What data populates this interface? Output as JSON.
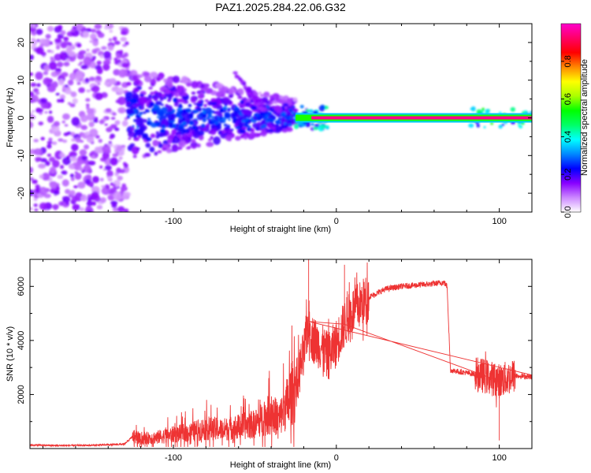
{
  "chart_data": [
    {
      "type": "heatmap",
      "title": "PAZ1.2025.284.22.06.G32",
      "xlabel": "Height of straight line (km)",
      "ylabel": "Frequency (Hz)",
      "xlim": [
        -188,
        120
      ],
      "ylim": [
        -25,
        25
      ],
      "xticks": [
        -100,
        0,
        100
      ],
      "yticks": [
        -20,
        -10,
        0,
        10,
        20
      ],
      "colorbar": {
        "label": "Normalized spectral amplitude",
        "range": [
          0,
          1
        ],
        "ticks": [
          0.0,
          0.2,
          0.4,
          0.6,
          0.8
        ],
        "colors": [
          "#ffffff",
          "#cc88ff",
          "#8800ff",
          "#0000ff",
          "#0088ff",
          "#00ffff",
          "#00ff66",
          "#00ff00",
          "#aaff00",
          "#ffff00",
          "#ff8800",
          "#ff0000",
          "#ff0066",
          "#ff00cc"
        ]
      },
      "regions": [
        {
          "x_range": [
            -188,
            -128
          ],
          "freq_range": [
            -25,
            25
          ],
          "amplitude": 0.05,
          "description": "sparse scatter"
        },
        {
          "x_range": [
            -128,
            -25
          ],
          "freq_range": [
            -10,
            12
          ],
          "amplitude": 0.15
        },
        {
          "x_range": [
            -25,
            120
          ],
          "freq_center": 0,
          "amplitude": 0.95
        }
      ]
    },
    {
      "type": "line",
      "xlabel": "Height of straight line (km)",
      "ylabel": "SNR (10 * v/v)",
      "xlim": [
        -188,
        120
      ],
      "ylim": [
        0,
        7000
      ],
      "xticks": [
        -100,
        0,
        100
      ],
      "yticks": [
        2000,
        4000,
        6000
      ],
      "series": [
        {
          "name": "SNR",
          "color": "#ee3333",
          "x": [
            -188,
            -170,
            -150,
            -130,
            -125,
            -120,
            -110,
            -100,
            -90,
            -80,
            -70,
            -60,
            -50,
            -45,
            -40,
            -35,
            -30,
            -25,
            -20,
            -17,
            -15,
            -10,
            -5,
            0,
            5,
            10,
            20,
            30,
            40,
            50,
            60,
            66,
            68,
            70,
            80,
            90,
            100,
            110,
            120
          ],
          "y": [
            130,
            110,
            120,
            160,
            450,
            350,
            420,
            520,
            600,
            750,
            700,
            800,
            900,
            1100,
            1300,
            1100,
            1700,
            2300,
            3500,
            4700,
            4100,
            3800,
            3400,
            3900,
            4600,
            5100,
            5600,
            5900,
            6000,
            6050,
            6100,
            6150,
            6000,
            2900,
            2800,
            2700,
            2500,
            2700,
            2650
          ]
        }
      ],
      "annotations": [
        {
          "type": "spike",
          "x": -17,
          "y": 7000
        },
        {
          "type": "spike",
          "x": 5,
          "y": 6800
        },
        {
          "type": "dip",
          "x": 100,
          "y": 300
        }
      ]
    }
  ]
}
